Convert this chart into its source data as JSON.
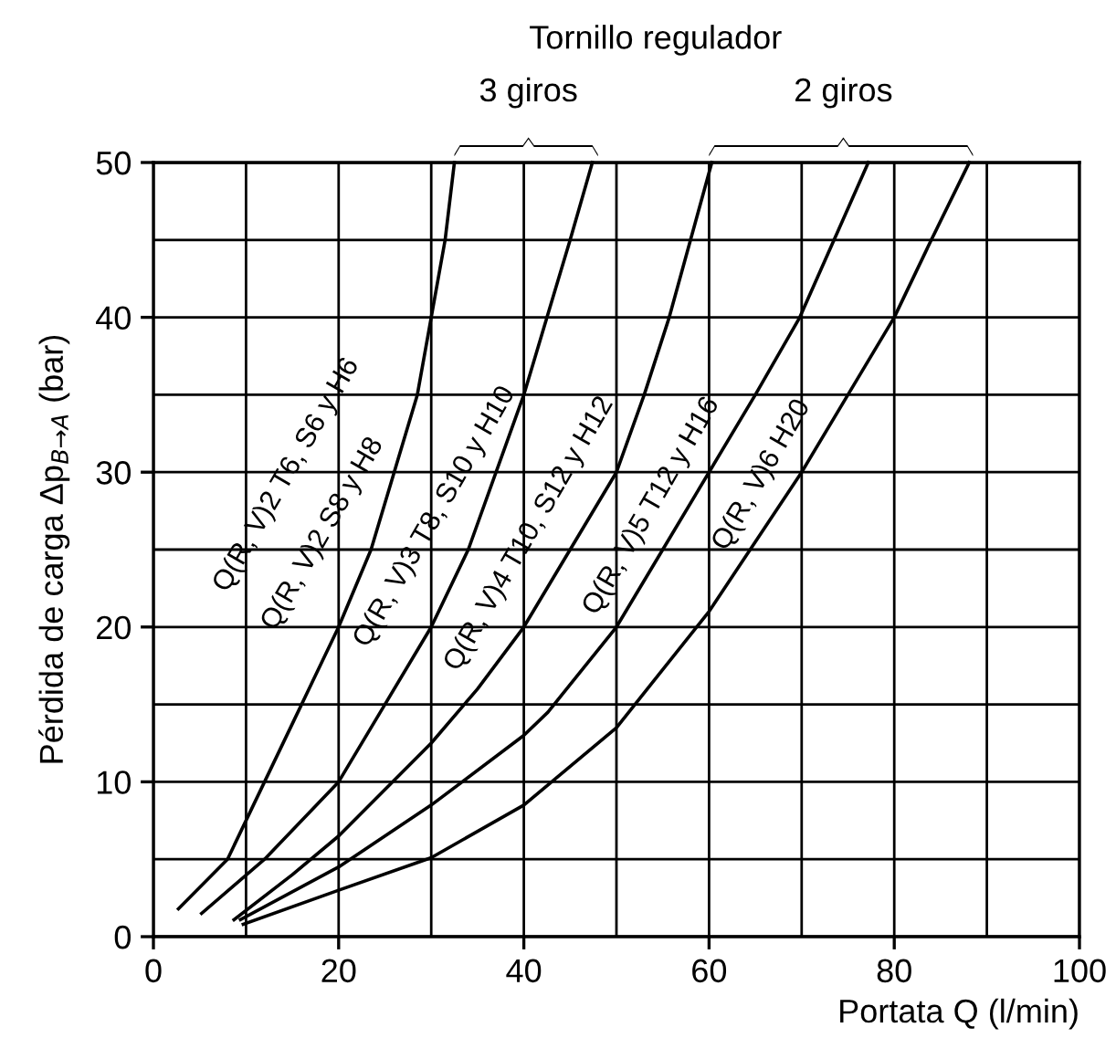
{
  "chart_data": {
    "type": "line",
    "title": "Tornillo regulador",
    "xlabel": "Portata Q (l/min)",
    "ylabel": "Pérdida de carga Δp$_{B→A}$ (bar)",
    "xlim": [
      0,
      100
    ],
    "ylim": [
      0,
      50
    ],
    "xticks": [
      0,
      {
        "value": 10,
        "label": null
      },
      20,
      {
        "value": 30,
        "label": null
      },
      40,
      {
        "value": 50,
        "label": null
      },
      60,
      {
        "value": 70,
        "label": null
      },
      80,
      {
        "value": 90,
        "label": null
      },
      100
    ],
    "yticks": [
      0,
      {
        "value": 5,
        "label": null
      },
      10,
      {
        "value": 15,
        "label": null
      },
      20,
      {
        "value": 25,
        "label": null
      },
      30,
      {
        "value": 35,
        "label": null
      },
      40,
      {
        "value": 45,
        "label": null
      },
      50
    ],
    "grid": true,
    "marker": "none",
    "line_style": "solid",
    "series": [
      {
        "color": "#000000",
        "x": [
          2.7,
          8,
          12,
          16,
          20,
          23.5,
          26,
          28.5,
          30,
          31.5,
          32.5
        ],
        "values": [
          1.8,
          5,
          10,
          15,
          20,
          25,
          30,
          35,
          40,
          45,
          50
        ]
      },
      {
        "color": "#000000",
        "x": [
          5.2,
          12,
          20,
          25,
          30,
          34,
          37,
          40,
          42.5,
          45,
          47.4
        ],
        "values": [
          1.5,
          5,
          10,
          15,
          20,
          25,
          30,
          35,
          40,
          45,
          50
        ]
      },
      {
        "color": "#000000",
        "x": [
          8.7,
          15,
          20,
          30,
          35,
          40,
          45,
          50,
          53,
          55.7,
          58,
          60.3
        ],
        "values": [
          1.1,
          4,
          6.5,
          12.5,
          16,
          20,
          25,
          30,
          35,
          40,
          45,
          50
        ]
      },
      {
        "color": "#000000",
        "x": [
          9.4,
          20,
          30,
          40,
          42.6,
          50,
          55,
          60,
          65,
          69.8,
          73.5,
          77.2
        ],
        "values": [
          1.1,
          4.5,
          8.5,
          13,
          14.5,
          20,
          25,
          30,
          35,
          40,
          45,
          50
        ]
      },
      {
        "color": "#000000",
        "x": [
          9.7,
          20,
          30,
          40,
          50,
          60,
          65,
          70,
          75,
          80,
          84,
          88.1
        ],
        "values": [
          0.8,
          3,
          5.1,
          8.5,
          13.5,
          21,
          25.5,
          30,
          35,
          40,
          45,
          50
        ]
      }
    ],
    "annotations": [
      "3 giros",
      "2 giros",
      "Q(R, V)2 T6, S6 y H6",
      "Q(R, V)2 S8 y H8",
      "Q(R, V)3 T8, S10 y H10",
      "Q(R, V)4 T10, S12 y H12",
      "Q(R, V)5 T12 y H16",
      "Q(R, V)6 H20"
    ]
  }
}
